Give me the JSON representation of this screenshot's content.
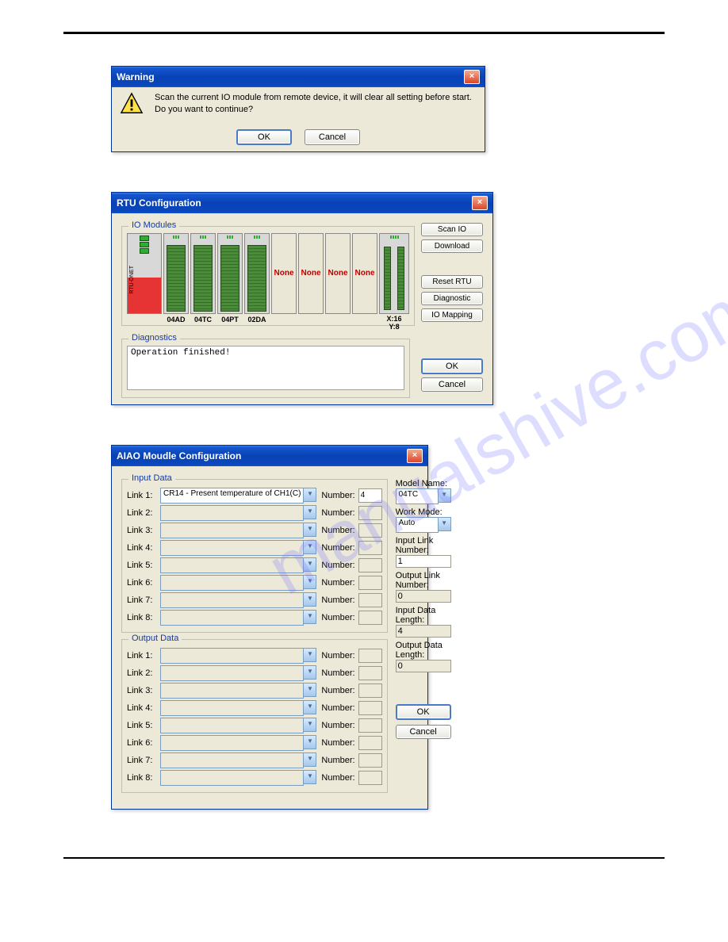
{
  "watermark": "manualshive.com",
  "warning_dialog": {
    "title": "Warning",
    "line1": "Scan the current IO module from remote device, it will clear all setting before start.",
    "line2": "Do you want to continue?",
    "ok": "OK",
    "cancel": "Cancel"
  },
  "rtu_dialog": {
    "title": "RTU Configuration",
    "io_modules_label": "IO Modules",
    "rtu_label": "RTU-DNET",
    "modules": [
      "04AD",
      "04TC",
      "04PT",
      "02DA"
    ],
    "none_label": "None",
    "tail_label_x": "X:16",
    "tail_label_y": "Y:8",
    "buttons": {
      "scan": "Scan IO",
      "download": "Download",
      "reset": "Reset RTU",
      "diagnostic": "Diagnostic",
      "mapping": "IO Mapping"
    },
    "diagnostics_label": "Diagnostics",
    "diagnostics_text": "Operation finished!",
    "ok": "OK",
    "cancel": "Cancel"
  },
  "aiao_dialog": {
    "title": "AIAO Moudle Configuration",
    "input_data_label": "Input Data",
    "output_data_label": "Output Data",
    "link_prefix": "Link",
    "number_label": "Number:",
    "input_links": [
      {
        "n": "1",
        "val": "CR14 - Present temperature of CH1(C)",
        "num": "4",
        "enabled": true
      },
      {
        "n": "2",
        "val": "",
        "num": "",
        "enabled": false
      },
      {
        "n": "3",
        "val": "",
        "num": "",
        "enabled": false
      },
      {
        "n": "4",
        "val": "",
        "num": "",
        "enabled": false
      },
      {
        "n": "5",
        "val": "",
        "num": "",
        "enabled": false
      },
      {
        "n": "6",
        "val": "",
        "num": "",
        "enabled": false
      },
      {
        "n": "7",
        "val": "",
        "num": "",
        "enabled": false
      },
      {
        "n": "8",
        "val": "",
        "num": "",
        "enabled": false
      }
    ],
    "output_links": [
      {
        "n": "1"
      },
      {
        "n": "2"
      },
      {
        "n": "3"
      },
      {
        "n": "4"
      },
      {
        "n": "5"
      },
      {
        "n": "6"
      },
      {
        "n": "7"
      },
      {
        "n": "8"
      }
    ],
    "right": {
      "model_name_label": "Model Name:",
      "model_name": "04TC",
      "work_mode_label": "Work Mode:",
      "work_mode": "Auto",
      "input_link_num_label": "Input Link Number:",
      "input_link_num": "1",
      "output_link_num_label": "Output Link Number:",
      "output_link_num": "0",
      "input_data_len_label": "Input Data Length:",
      "input_data_len": "4",
      "output_data_len_label": "Output Data Length:",
      "output_data_len": "0"
    },
    "ok": "OK",
    "cancel": "Cancel"
  }
}
